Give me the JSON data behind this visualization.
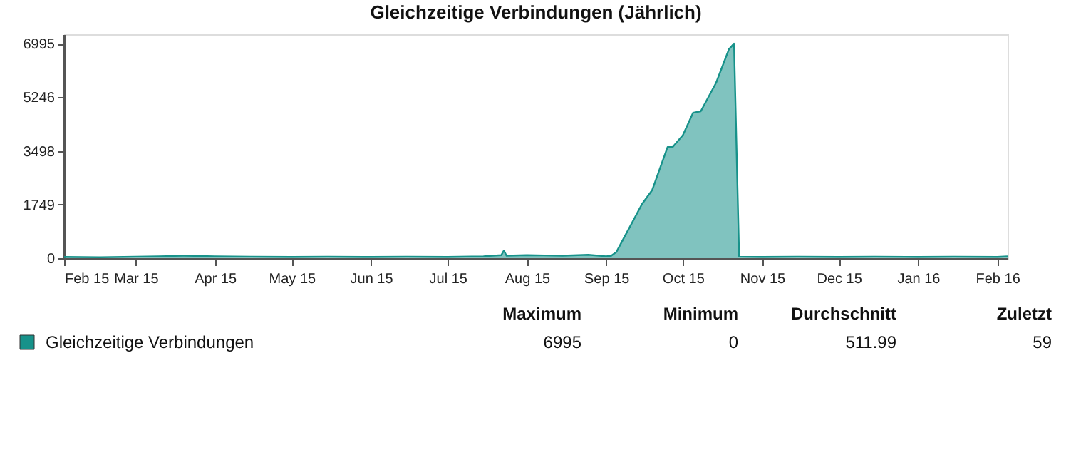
{
  "chart_data": {
    "type": "area",
    "title": "Gleichzeitige Verbindungen (Jährlich)",
    "x": [
      "2015-02-01",
      "2015-02-15",
      "2015-03-01",
      "2015-03-10",
      "2015-03-20",
      "2015-04-01",
      "2015-04-15",
      "2015-05-01",
      "2015-05-15",
      "2015-06-01",
      "2015-06-15",
      "2015-07-01",
      "2015-07-15",
      "2015-07-22",
      "2015-07-23",
      "2015-07-24",
      "2015-08-01",
      "2015-08-15",
      "2015-08-25",
      "2015-09-01",
      "2015-09-03",
      "2015-09-05",
      "2015-09-08",
      "2015-09-10",
      "2015-09-15",
      "2015-09-19",
      "2015-09-22",
      "2015-09-25",
      "2015-09-27",
      "2015-10-01",
      "2015-10-05",
      "2015-10-08",
      "2015-10-14",
      "2015-10-19",
      "2015-10-21",
      "2015-10-23",
      "2015-11-01",
      "2015-11-15",
      "2015-12-01",
      "2015-12-15",
      "2016-01-01",
      "2016-01-15",
      "2016-02-01",
      "2016-02-05"
    ],
    "series": [
      {
        "name": "Gleichzeitige Verbindungen",
        "color": "#17928a",
        "values": [
          40,
          30,
          50,
          60,
          80,
          60,
          50,
          40,
          50,
          40,
          50,
          40,
          60,
          100,
          250,
          80,
          100,
          80,
          110,
          60,
          80,
          200,
          670,
          980,
          1760,
          2220,
          2920,
          3620,
          3620,
          4010,
          4740,
          4790,
          5720,
          6810,
          6995,
          50,
          40,
          50,
          40,
          50,
          40,
          50,
          40,
          59
        ]
      }
    ],
    "xlim": [
      "2015-02-01",
      "2016-02-05"
    ],
    "xticks": [
      {
        "value": "2015-02-01",
        "label": "Feb 15"
      },
      {
        "value": "2015-03-01",
        "label": "Mar 15"
      },
      {
        "value": "2015-04-01",
        "label": "Apr 15"
      },
      {
        "value": "2015-05-01",
        "label": "May 15"
      },
      {
        "value": "2015-06-01",
        "label": "Jun 15"
      },
      {
        "value": "2015-07-01",
        "label": "Jul 15"
      },
      {
        "value": "2015-08-01",
        "label": "Aug 15"
      },
      {
        "value": "2015-09-01",
        "label": "Sep 15"
      },
      {
        "value": "2015-10-01",
        "label": "Oct 15"
      },
      {
        "value": "2015-11-01",
        "label": "Nov 15"
      },
      {
        "value": "2015-12-01",
        "label": "Dec 15"
      },
      {
        "value": "2016-01-01",
        "label": "Jan 16"
      },
      {
        "value": "2016-02-01",
        "label": "Feb 16"
      }
    ],
    "ylim": [
      0,
      7300
    ],
    "yticks": [
      0,
      1749,
      3498,
      5246,
      6995
    ],
    "grid": false,
    "legend": "bottom",
    "annotations": [
      "Maximum",
      "Minimum",
      "Durchschnitt",
      "Zuletzt",
      "6995",
      "0",
      "511.99",
      "59"
    ]
  }
}
